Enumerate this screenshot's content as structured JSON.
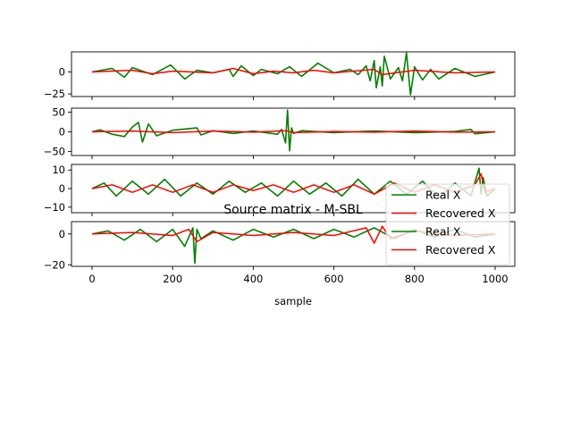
{
  "chart_data": {
    "type": "line",
    "title": "Source matrix - M-SBL",
    "xlabel": "sample",
    "x_range": [
      0,
      1000
    ],
    "x_ticks": [
      0,
      200,
      400,
      600,
      800,
      1000
    ],
    "colors": {
      "real": "#008000",
      "recovered": "#ff0000"
    },
    "legend_entries": [
      "Real X",
      "Recovered X",
      "Real X",
      "Recovered X"
    ],
    "legend_position": "lower-right",
    "subplots": [
      {
        "row": 1,
        "ylim": [
          -28,
          23
        ],
        "yticks": [
          0,
          -25
        ],
        "series": [
          {
            "name": "Real X",
            "color": "green",
            "x": [
              0,
              50,
              80,
              100,
              150,
              195,
              230,
              260,
              300,
              340,
              350,
              370,
              400,
              420,
              460,
              490,
              520,
              560,
              600,
              640,
              660,
              680,
              690,
              700,
              705,
              715,
              720,
              725,
              740,
              760,
              770,
              780,
              790,
              800,
              820,
              840,
              860,
              900,
              950,
              1000
            ],
            "y": [
              0,
              4,
              -6,
              5,
              -3,
              8,
              -8,
              2,
              -1,
              3,
              -5,
              7,
              -4,
              3,
              -2,
              6,
              -5,
              10,
              -1,
              3,
              -3,
              7,
              -10,
              13,
              -18,
              6,
              -16,
              18,
              -8,
              5,
              -10,
              22,
              -26,
              6,
              -9,
              3,
              -8,
              4,
              -5,
              0
            ]
          },
          {
            "name": "Recovered X",
            "color": "red",
            "x": [
              0,
              100,
              150,
              200,
              300,
              350,
              400,
              450,
              500,
              550,
              600,
              700,
              720,
              800,
              900,
              1000
            ],
            "y": [
              0,
              2,
              -2,
              1,
              -1,
              4,
              -2,
              1,
              -1,
              2,
              -1,
              3,
              -3,
              2,
              -1,
              0
            ]
          }
        ]
      },
      {
        "row": 2,
        "ylim": [
          -60,
          60
        ],
        "yticks": [
          50,
          0,
          -50
        ],
        "series": [
          {
            "name": "Real X",
            "color": "green",
            "x": [
              0,
              20,
              50,
              80,
              100,
              115,
              125,
              140,
              160,
              200,
              260,
              270,
              300,
              350,
              400,
              460,
              470,
              480,
              485,
              490,
              495,
              500,
              520,
              600,
              700,
              800,
              900,
              940,
              950,
              1000
            ],
            "y": [
              0,
              5,
              -6,
              -12,
              12,
              24,
              -26,
              20,
              -10,
              4,
              10,
              -8,
              3,
              -4,
              2,
              -6,
              6,
              -28,
              55,
              -48,
              10,
              -4,
              3,
              -2,
              2,
              -2,
              1,
              6,
              -5,
              0
            ]
          },
          {
            "name": "Recovered X",
            "color": "red",
            "x": [
              0,
              100,
              200,
              300,
              400,
              480,
              500,
              600,
              700,
              800,
              900,
              1000
            ],
            "y": [
              0,
              2,
              -2,
              2,
              -1,
              3,
              -2,
              1,
              -1,
              2,
              -1,
              0
            ]
          }
        ]
      },
      {
        "row": 3,
        "ylim": [
          -13,
          13
        ],
        "yticks": [
          10,
          0,
          -10
        ],
        "series": [
          {
            "name": "Real X",
            "color": "green",
            "x": [
              0,
              30,
              60,
              100,
              140,
              180,
              220,
              260,
              300,
              340,
              380,
              420,
              460,
              500,
              540,
              580,
              620,
              660,
              700,
              740,
              780,
              820,
              860,
              900,
              940,
              960,
              965,
              970,
              980,
              1000
            ],
            "y": [
              0,
              3,
              -4,
              4,
              -3,
              5,
              -4,
              3,
              -3,
              4,
              -2,
              3,
              -4,
              4,
              -3,
              3,
              -4,
              5,
              -3,
              4,
              -3,
              4,
              -5,
              3,
              -4,
              11,
              -3,
              6,
              -4,
              0
            ]
          },
          {
            "name": "Recovered X",
            "color": "red",
            "x": [
              0,
              50,
              100,
              150,
              200,
              250,
              300,
              350,
              400,
              450,
              500,
              550,
              600,
              650,
              700,
              750,
              800,
              850,
              900,
              950,
              965,
              975,
              1000
            ],
            "y": [
              0,
              2,
              -2,
              2,
              -2,
              2,
              -2,
              2,
              -1,
              2,
              -2,
              2,
              -2,
              2,
              -3,
              3,
              -2,
              2,
              -2,
              2,
              8,
              -2,
              0
            ]
          }
        ]
      },
      {
        "row": 4,
        "ylim": [
          -21,
          8
        ],
        "yticks": [
          0,
          -20
        ],
        "series": [
          {
            "name": "Real X",
            "color": "green",
            "x": [
              0,
              40,
              80,
              120,
              160,
              200,
              230,
              250,
              255,
              260,
              270,
              300,
              350,
              400,
              450,
              500,
              550,
              600,
              650,
              700,
              750,
              800,
              850,
              900,
              950,
              1000
            ],
            "y": [
              0,
              2,
              -4,
              3,
              -5,
              3,
              -8,
              4,
              -19,
              3,
              -3,
              2,
              -4,
              3,
              -2,
              3,
              -3,
              3,
              -2,
              4,
              -3,
              3,
              -2,
              3,
              -2,
              0
            ]
          },
          {
            "name": "Recovered X",
            "color": "red",
            "x": [
              0,
              100,
              200,
              240,
              260,
              300,
              400,
              500,
              600,
              680,
              700,
              720,
              740,
              800,
              900,
              1000
            ],
            "y": [
              0,
              1,
              -1,
              3,
              -5,
              1,
              -1,
              1,
              -1,
              4,
              -6,
              5,
              -3,
              2,
              -1,
              0
            ]
          }
        ]
      }
    ]
  }
}
